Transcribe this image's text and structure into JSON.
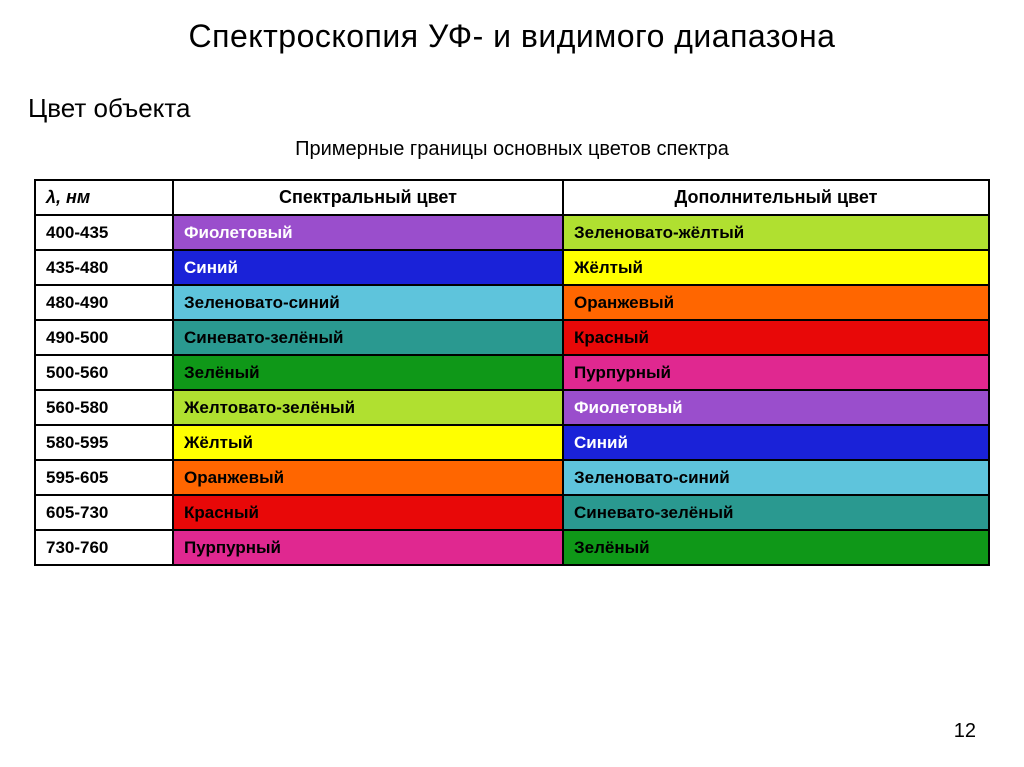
{
  "page": {
    "title": "Спектроскопия УФ- и видимого диапазона",
    "subtitle": "Цвет объекта",
    "caption": "Примерные границы основных цветов спектра",
    "page_number": "12"
  },
  "table": {
    "headers": {
      "lambda": "λ, нм",
      "spectral": "Спектральный цвет",
      "complementary": "Дополнительный цвет"
    },
    "rows": [
      {
        "range": "400-435",
        "spectral": {
          "label": "Фиолетовый",
          "bg": "#9a4ecc",
          "fg": "#ffffff"
        },
        "complementary": {
          "label": "Зеленовато-жёлтый",
          "bg": "#b0e030",
          "fg": "#000000"
        }
      },
      {
        "range": "435-480",
        "spectral": {
          "label": "Синий",
          "bg": "#1a22d8",
          "fg": "#ffffff"
        },
        "complementary": {
          "label": "Жёлтый",
          "bg": "#ffff00",
          "fg": "#000000"
        }
      },
      {
        "range": "480-490",
        "spectral": {
          "label": "Зеленовато-синий",
          "bg": "#5ec4dc",
          "fg": "#000000"
        },
        "complementary": {
          "label": "Оранжевый",
          "bg": "#ff6600",
          "fg": "#000000"
        }
      },
      {
        "range": "490-500",
        "spectral": {
          "label": "Синевато-зелёный",
          "bg": "#2a9990",
          "fg": "#000000"
        },
        "complementary": {
          "label": "Красный",
          "bg": "#e80808",
          "fg": "#000000"
        }
      },
      {
        "range": "500-560",
        "spectral": {
          "label": "Зелёный",
          "bg": "#0f9818",
          "fg": "#000000"
        },
        "complementary": {
          "label": "Пурпурный",
          "bg": "#e02890",
          "fg": "#000000"
        }
      },
      {
        "range": "560-580",
        "spectral": {
          "label": "Желтовато-зелёный",
          "bg": "#b0e030",
          "fg": "#000000"
        },
        "complementary": {
          "label": "Фиолетовый",
          "bg": "#9a4ecc",
          "fg": "#ffffff"
        }
      },
      {
        "range": "580-595",
        "spectral": {
          "label": "Жёлтый",
          "bg": "#ffff00",
          "fg": "#000000"
        },
        "complementary": {
          "label": "Синий",
          "bg": "#1a22d8",
          "fg": "#ffffff"
        }
      },
      {
        "range": "595-605",
        "spectral": {
          "label": "Оранжевый",
          "bg": "#ff6600",
          "fg": "#000000"
        },
        "complementary": {
          "label": "Зеленовато-синий",
          "bg": "#5ec4dc",
          "fg": "#000000"
        }
      },
      {
        "range": "605-730",
        "spectral": {
          "label": "Красный",
          "bg": "#e80808",
          "fg": "#000000"
        },
        "complementary": {
          "label": "Синевато-зелёный",
          "bg": "#2a9990",
          "fg": "#000000"
        }
      },
      {
        "range": "730-760",
        "spectral": {
          "label": "Пурпурный",
          "bg": "#e02890",
          "fg": "#000000"
        },
        "complementary": {
          "label": "Зелёный",
          "bg": "#0f9818",
          "fg": "#000000"
        }
      }
    ]
  }
}
